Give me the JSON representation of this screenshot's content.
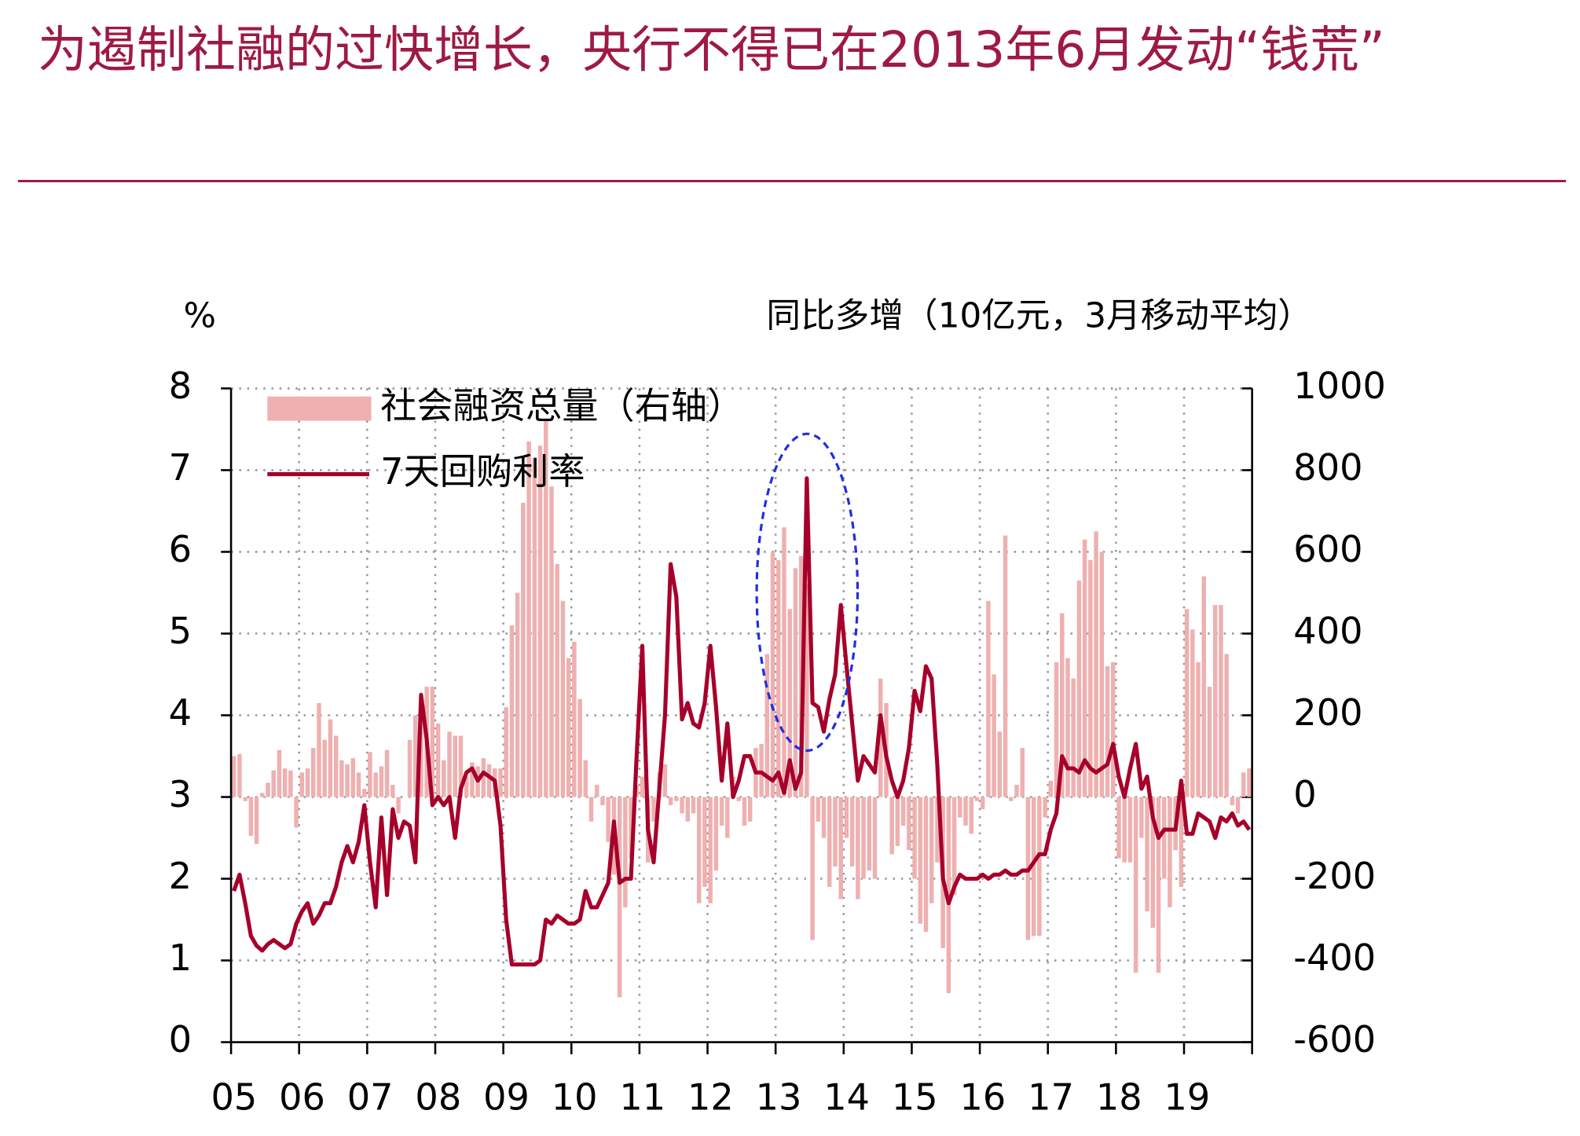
{
  "chart_data": {
    "type": "combo",
    "title": "为遏制社融的过快增长，央行不得已在2013年6月发动“钱荒”",
    "y_label": "%",
    "y2_label": "同比多增（10亿元，3月移动平均）",
    "categories": [
      "05",
      null,
      null,
      null,
      null,
      null,
      null,
      null,
      null,
      null,
      null,
      null,
      "06",
      null,
      null,
      null,
      null,
      null,
      null,
      null,
      null,
      null,
      null,
      null,
      "07",
      null,
      null,
      null,
      null,
      null,
      null,
      null,
      null,
      null,
      null,
      null,
      "08",
      null,
      null,
      null,
      null,
      null,
      null,
      null,
      null,
      null,
      null,
      null,
      "09",
      null,
      null,
      null,
      null,
      null,
      null,
      null,
      null,
      null,
      null,
      null,
      "10",
      null,
      null,
      null,
      null,
      null,
      null,
      null,
      null,
      null,
      null,
      null,
      "11",
      null,
      null,
      null,
      null,
      null,
      null,
      null,
      null,
      null,
      null,
      null,
      "12",
      null,
      null,
      null,
      null,
      null,
      null,
      null,
      null,
      null,
      null,
      null,
      "13",
      null,
      null,
      null,
      null,
      null,
      null,
      null,
      null,
      null,
      null,
      null,
      "14",
      null,
      null,
      null,
      null,
      null,
      null,
      null,
      null,
      null,
      null,
      null,
      "15",
      null,
      null,
      null,
      null,
      null,
      null,
      null,
      null,
      null,
      null,
      null,
      "16",
      null,
      null,
      null,
      null,
      null,
      null,
      null,
      null,
      null,
      null,
      null,
      "17",
      null,
      null,
      null,
      null,
      null,
      null,
      null,
      null,
      null,
      null,
      null,
      "18",
      null,
      null,
      null,
      null,
      null,
      null,
      null,
      null,
      null,
      null,
      null,
      "19",
      null,
      null,
      null,
      null,
      null,
      null,
      null,
      null,
      null,
      null,
      null
    ],
    "series": [
      {
        "name": "社会融资总量（右轴）",
        "type": "bar",
        "axis": "y2",
        "color": "#eeb0b0",
        "values": [
          100,
          105,
          -10,
          -95,
          -115,
          10,
          35,
          65,
          115,
          70,
          65,
          -75,
          60,
          70,
          120,
          230,
          140,
          190,
          150,
          90,
          80,
          95,
          60,
          20,
          110,
          60,
          75,
          115,
          30,
          -40,
          0,
          140,
          200,
          240,
          270,
          270,
          180,
          90,
          160,
          150,
          150,
          50,
          85,
          75,
          95,
          80,
          70,
          70,
          220,
          420,
          500,
          720,
          870,
          830,
          860,
          920,
          760,
          570,
          480,
          340,
          380,
          240,
          90,
          -60,
          30,
          -20,
          -110,
          -190,
          -490,
          -270,
          -150,
          30,
          50,
          -160,
          -60,
          60,
          80,
          -20,
          -10,
          -40,
          -60,
          -40,
          -260,
          -220,
          -260,
          -180,
          -70,
          -100,
          50,
          -10,
          -70,
          -60,
          120,
          130,
          350,
          600,
          580,
          660,
          460,
          560,
          590,
          520,
          -350,
          -60,
          -100,
          -220,
          -170,
          -250,
          -100,
          -170,
          -250,
          -200,
          -180,
          -200,
          290,
          230,
          -140,
          -120,
          -70,
          -130,
          -200,
          -310,
          -330,
          -260,
          -160,
          -370,
          -480,
          -240,
          -50,
          -70,
          -90,
          -10,
          -30,
          480,
          300,
          160,
          640,
          -10,
          30,
          120,
          -350,
          -340,
          -340,
          -50,
          40,
          330,
          450,
          340,
          290,
          530,
          630,
          580,
          650,
          600,
          320,
          330,
          -150,
          -160,
          -160,
          -430,
          -100,
          -280,
          -320,
          -430,
          -200,
          -270,
          -130,
          -220,
          460,
          410,
          330,
          540,
          270,
          470,
          470,
          350,
          -20,
          -40,
          60,
          70
        ]
      },
      {
        "name": "7天回购利率",
        "type": "line",
        "color": "#a6002a",
        "values": [
          1.85,
          2.05,
          1.7,
          1.3,
          1.18,
          1.12,
          1.2,
          1.25,
          1.2,
          1.15,
          1.2,
          1.45,
          1.6,
          1.7,
          1.45,
          1.55,
          1.7,
          1.7,
          1.9,
          2.2,
          2.4,
          2.2,
          2.45,
          2.9,
          2.2,
          1.65,
          2.75,
          1.8,
          2.85,
          2.5,
          2.7,
          2.65,
          2.2,
          4.25,
          3.7,
          2.9,
          3.0,
          2.9,
          3.0,
          2.5,
          3.1,
          3.3,
          3.35,
          3.2,
          3.3,
          3.25,
          3.2,
          2.65,
          1.5,
          0.95,
          0.95,
          0.95,
          0.95,
          0.95,
          1.0,
          1.5,
          1.45,
          1.55,
          1.5,
          1.45,
          1.45,
          1.5,
          1.85,
          1.65,
          1.65,
          1.8,
          1.95,
          2.7,
          1.95,
          2.0,
          2.0,
          3.5,
          4.85,
          2.6,
          2.2,
          3.1,
          4.0,
          5.85,
          5.45,
          3.95,
          4.15,
          3.9,
          3.85,
          4.15,
          4.85,
          4.1,
          3.2,
          3.9,
          3.0,
          3.2,
          3.5,
          3.5,
          3.3,
          3.3,
          3.25,
          3.2,
          3.3,
          3.05,
          3.45,
          3.1,
          3.3,
          6.9,
          4.15,
          4.1,
          3.8,
          4.2,
          4.5,
          5.35,
          4.6,
          3.9,
          3.2,
          3.5,
          3.4,
          3.3,
          4.0,
          3.5,
          3.2,
          3.0,
          3.2,
          3.6,
          4.3,
          4.05,
          4.6,
          4.45,
          3.4,
          2.0,
          1.7,
          1.9,
          2.05,
          2.0,
          2.0,
          2.0,
          2.05,
          2.0,
          2.05,
          2.05,
          2.1,
          2.05,
          2.05,
          2.1,
          2.1,
          2.2,
          2.3,
          2.3,
          2.6,
          2.8,
          3.5,
          3.35,
          3.35,
          3.3,
          3.45,
          3.35,
          3.3,
          3.35,
          3.4,
          3.65,
          3.25,
          3.0,
          3.35,
          3.65,
          3.1,
          3.25,
          2.75,
          2.5,
          2.6,
          2.6,
          2.6,
          3.2,
          2.55,
          2.55,
          2.8,
          2.75,
          2.7,
          2.5,
          2.75,
          2.7,
          2.8,
          2.65,
          2.7,
          2.6
        ]
      }
    ],
    "ylim": [
      0,
      8
    ],
    "yticks": [
      0,
      1,
      2,
      3,
      4,
      5,
      6,
      7,
      8
    ],
    "y2lim": [
      -600,
      1000
    ],
    "y2ticks": [
      -600,
      -400,
      -200,
      0,
      200,
      400,
      600,
      800,
      1000
    ],
    "grid": true,
    "legend": "upper left"
  }
}
